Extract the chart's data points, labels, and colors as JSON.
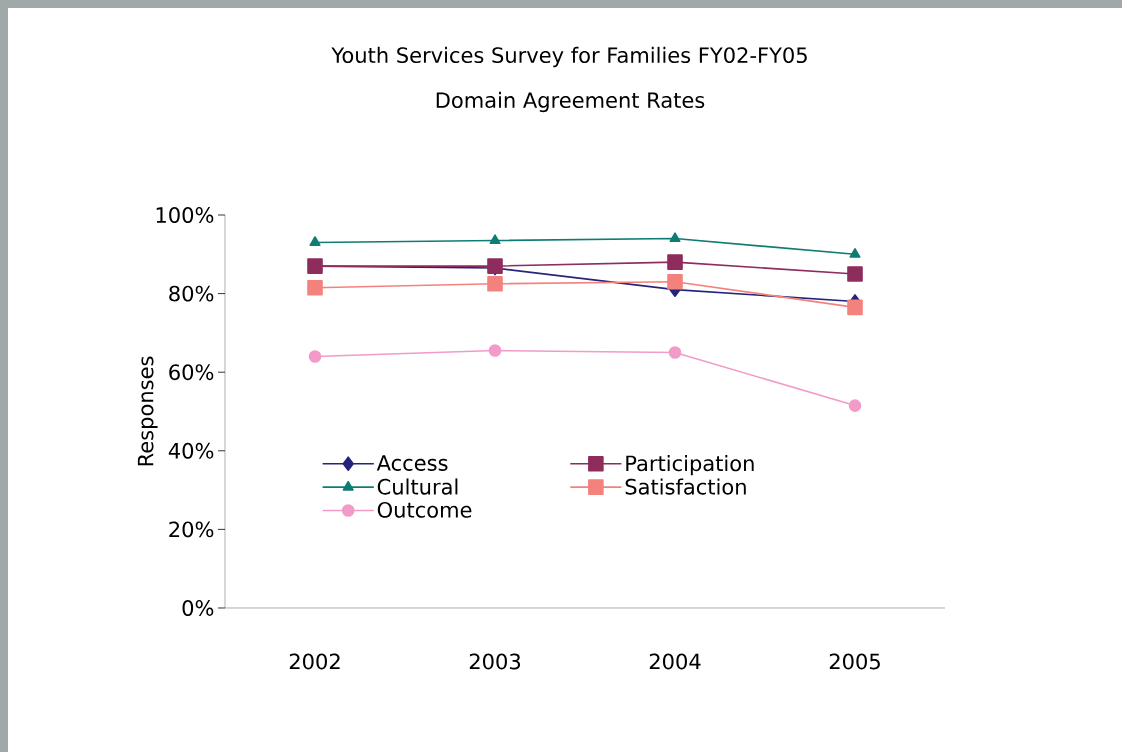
{
  "chart_data": {
    "type": "line",
    "title": "Youth Services Survey for Families FY02-FY05",
    "subtitle": "Domain Agreement Rates",
    "ylabel": "Responses",
    "categories": [
      "2002",
      "2003",
      "2004",
      "2005"
    ],
    "series": [
      {
        "name": "Access",
        "color": "#24247e",
        "marker": "diamond",
        "values": [
          87,
          86.5,
          81,
          78
        ]
      },
      {
        "name": "Participation",
        "color": "#8e2c5c",
        "marker": "square",
        "values": [
          87,
          87,
          88,
          85
        ]
      },
      {
        "name": "Cultural",
        "color": "#0f7c74",
        "marker": "triangle",
        "values": [
          93,
          93.5,
          94,
          90
        ]
      },
      {
        "name": "Satisfaction",
        "color": "#f4827c",
        "marker": "square",
        "values": [
          81.5,
          82.5,
          83,
          76.5
        ]
      },
      {
        "name": "Outcome",
        "color": "#f29bc8",
        "marker": "circle",
        "values": [
          64,
          65.5,
          65,
          51.5
        ]
      }
    ],
    "ylim": [
      0,
      100
    ],
    "yticks": [
      {
        "value": 0,
        "label": "0%"
      },
      {
        "value": 20,
        "label": "20%"
      },
      {
        "value": 40,
        "label": "40%"
      },
      {
        "value": 60,
        "label": "60%"
      },
      {
        "value": 80,
        "label": "80%"
      },
      {
        "value": 100,
        "label": "100%"
      }
    ],
    "grid": false,
    "legend": "bottom"
  }
}
